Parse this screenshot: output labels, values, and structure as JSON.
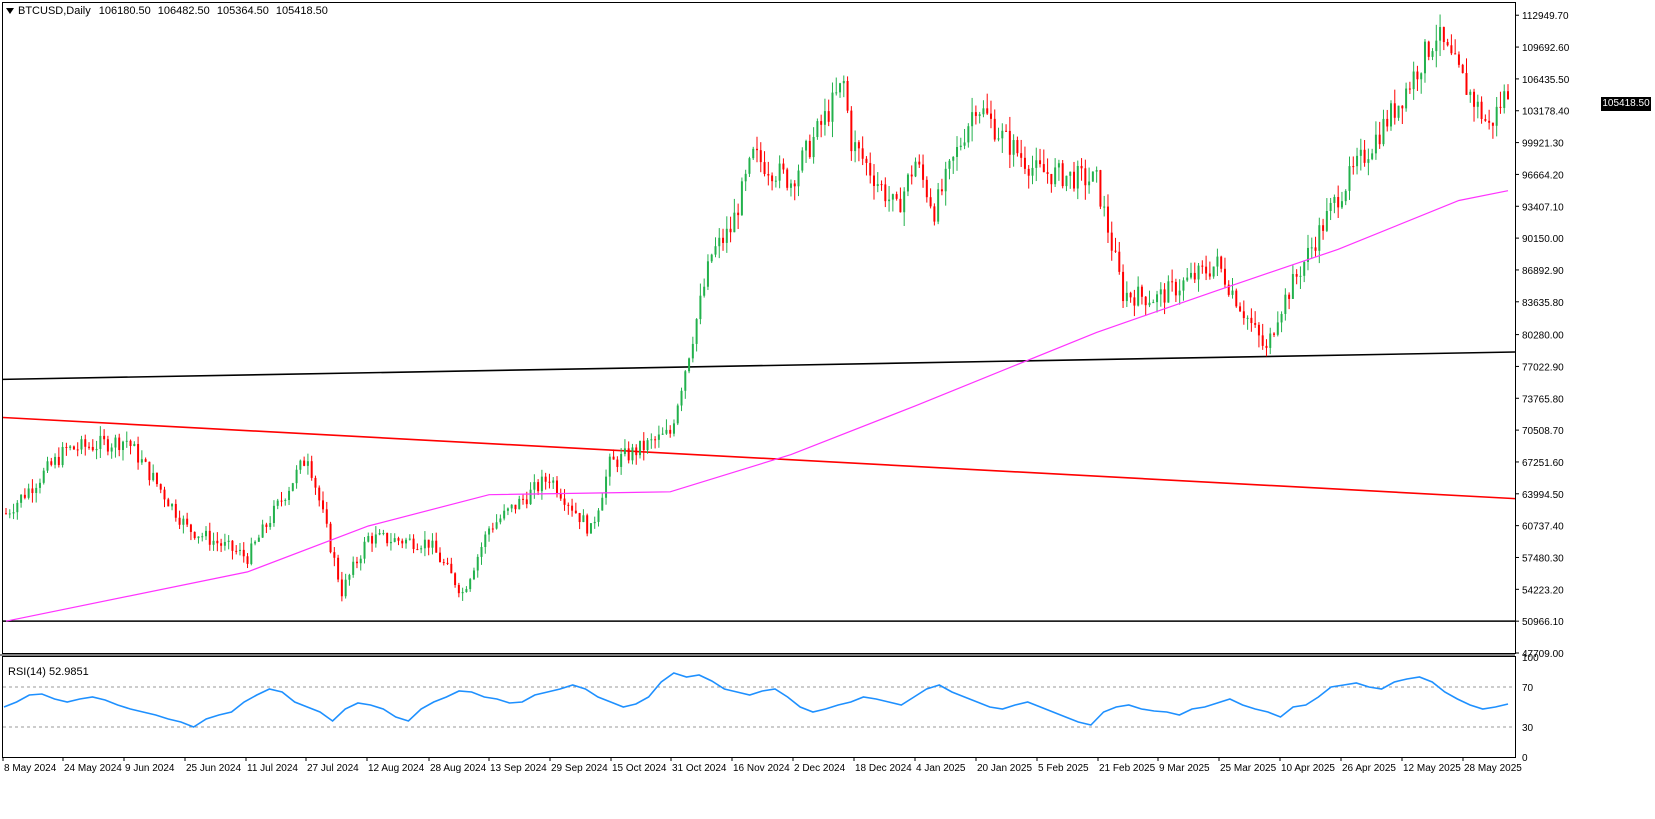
{
  "header": {
    "symbol": "BTCUSD,Daily",
    "open": "106180.50",
    "high": "106482.50",
    "low": "105364.50",
    "close": "105418.50"
  },
  "current_price_tag": "105418.50",
  "rsi": {
    "label": "RSI(14) 52.9851"
  },
  "colors": {
    "bull": "#22b14c",
    "bear": "#ff0000",
    "ma": "#ff33ff",
    "support_black": "#000000",
    "trend_red": "#ff0000",
    "rsi_line": "#1e90ff",
    "grid_dotted": "#999999"
  },
  "chart_data": [
    {
      "type": "candlestick",
      "title": "BTCUSD,Daily",
      "x_tick_labels": [
        "8 May 2024",
        "24 May 2024",
        "9 Jun 2024",
        "25 Jun 2024",
        "11 Jul 2024",
        "27 Jul 2024",
        "12 Aug 2024",
        "28 Aug 2024",
        "13 Sep 2024",
        "29 Sep 2024",
        "15 Oct 2024",
        "31 Oct 2024",
        "16 Nov 2024",
        "2 Dec 2024",
        "18 Dec 2024",
        "4 Jan 2025",
        "20 Jan 2025",
        "5 Feb 2025",
        "21 Feb 2025",
        "9 Mar 2025",
        "25 Mar 2025",
        "10 Apr 2025",
        "26 Apr 2025",
        "12 May 2025",
        "28 May 2025"
      ],
      "y_tick_labels": [
        "112949.70",
        "109692.60",
        "106435.50",
        "103178.40",
        "99921.30",
        "96664.20",
        "93407.10",
        "90150.00",
        "86892.90",
        "83635.80",
        "80280.00",
        "77022.90",
        "73765.80",
        "70508.70",
        "67251.60",
        "63994.50",
        "60737.40",
        "57480.30",
        "54223.20",
        "50966.10",
        "47709.00"
      ],
      "ylim": [
        47709.0,
        114200.0
      ],
      "approx_close_path": [
        {
          "date": "8 May 2024",
          "close": 62000
        },
        {
          "date": "24 May 2024",
          "close": 68500
        },
        {
          "date": "9 Jun 2024",
          "close": 69500
        },
        {
          "date": "25 Jun 2024",
          "close": 60500
        },
        {
          "date": "11 Jul 2024",
          "close": 57500
        },
        {
          "date": "27 Jul 2024",
          "close": 68000
        },
        {
          "date": "5 Aug 2024",
          "close": 54000
        },
        {
          "date": "12 Aug 2024",
          "close": 59500
        },
        {
          "date": "28 Aug 2024",
          "close": 59000
        },
        {
          "date": "6 Sep 2024",
          "close": 53900
        },
        {
          "date": "13 Sep 2024",
          "close": 60500
        },
        {
          "date": "29 Sep 2024",
          "close": 65700
        },
        {
          "date": "10 Oct 2024",
          "close": 60200
        },
        {
          "date": "15 Oct 2024",
          "close": 67000
        },
        {
          "date": "31 Oct 2024",
          "close": 70200
        },
        {
          "date": "11 Nov 2024",
          "close": 88500
        },
        {
          "date": "16 Nov 2024",
          "close": 91000
        },
        {
          "date": "22 Nov 2024",
          "close": 98500
        },
        {
          "date": "2 Dec 2024",
          "close": 96000
        },
        {
          "date": "16 Dec 2024",
          "close": 106000
        },
        {
          "date": "18 Dec 2024",
          "close": 100000
        },
        {
          "date": "30 Dec 2024",
          "close": 93000
        },
        {
          "date": "4 Jan 2025",
          "close": 98000
        },
        {
          "date": "9 Jan 2025",
          "close": 93000
        },
        {
          "date": "20 Jan 2025",
          "close": 104000
        },
        {
          "date": "27 Jan 2025",
          "close": 100500
        },
        {
          "date": "5 Feb 2025",
          "close": 97000
        },
        {
          "date": "21 Feb 2025",
          "close": 96000
        },
        {
          "date": "28 Feb 2025",
          "close": 84500
        },
        {
          "date": "9 Mar 2025",
          "close": 84000
        },
        {
          "date": "25 Mar 2025",
          "close": 87500
        },
        {
          "date": "7 Apr 2025",
          "close": 78500
        },
        {
          "date": "10 Apr 2025",
          "close": 82500
        },
        {
          "date": "26 Apr 2025",
          "close": 94500
        },
        {
          "date": "12 May 2025",
          "close": 104000
        },
        {
          "date": "22 May 2025",
          "close": 111000
        },
        {
          "date": "5 Jun 2025",
          "close": 101500
        },
        {
          "date": "10 Jun 2025",
          "close": 105418.5
        }
      ],
      "overlays": [
        {
          "name": "moving-average",
          "color": "#ff33ff",
          "points": [
            {
              "date": "8 May 2024",
              "value": 50966
            },
            {
              "date": "11 Jul 2024",
              "value": 56000
            },
            {
              "date": "12 Aug 2024",
              "value": 60700
            },
            {
              "date": "13 Sep 2024",
              "value": 63900
            },
            {
              "date": "31 Oct 2024",
              "value": 64200
            },
            {
              "date": "2 Dec 2024",
              "value": 68000
            },
            {
              "date": "4 Jan 2025",
              "value": 73000
            },
            {
              "date": "21 Feb 2025",
              "value": 80500
            },
            {
              "date": "25 Mar 2025",
              "value": 84800
            },
            {
              "date": "26 Apr 2025",
              "value": 89000
            },
            {
              "date": "28 May 2025",
              "value": 94000
            },
            {
              "date": "10 Jun 2025",
              "value": 95000
            }
          ]
        },
        {
          "name": "horizontal-support",
          "color": "#000000",
          "value": 50966
        },
        {
          "name": "rising-trendline",
          "color": "#000000",
          "start": {
            "date": "8 May 2024",
            "value": 75700
          },
          "end": {
            "date": "10 Jun 2025",
            "value": 78500
          }
        },
        {
          "name": "falling-trendline",
          "color": "#ff0000",
          "start": {
            "date": "8 May 2024",
            "value": 71800
          },
          "end": {
            "date": "10 Jun 2025",
            "value": 63500
          }
        }
      ]
    },
    {
      "type": "line",
      "title": "RSI(14) 52.9851",
      "y_tick_labels": [
        "100",
        "70",
        "30",
        "0"
      ],
      "ylim": [
        0,
        100
      ],
      "reference_levels": [
        70,
        30
      ],
      "values": [
        50,
        55,
        62,
        63,
        58,
        55,
        58,
        60,
        57,
        52,
        48,
        45,
        42,
        38,
        35,
        30,
        38,
        42,
        45,
        55,
        62,
        68,
        65,
        55,
        50,
        45,
        36,
        48,
        54,
        52,
        48,
        40,
        36,
        48,
        55,
        60,
        66,
        65,
        60,
        58,
        54,
        55,
        62,
        65,
        68,
        72,
        68,
        60,
        55,
        50,
        53,
        60,
        75,
        84,
        80,
        82,
        76,
        68,
        65,
        62,
        66,
        68,
        60,
        50,
        45,
        48,
        52,
        55,
        60,
        58,
        55,
        52,
        60,
        68,
        72,
        65,
        60,
        55,
        50,
        48,
        52,
        55,
        50,
        45,
        40,
        35,
        32,
        45,
        50,
        52,
        48,
        46,
        45,
        42,
        48,
        50,
        54,
        58,
        52,
        48,
        45,
        40,
        50,
        52,
        60,
        70,
        72,
        74,
        70,
        68,
        75,
        78,
        80,
        75,
        65,
        58,
        52,
        48,
        50,
        53
      ]
    }
  ]
}
